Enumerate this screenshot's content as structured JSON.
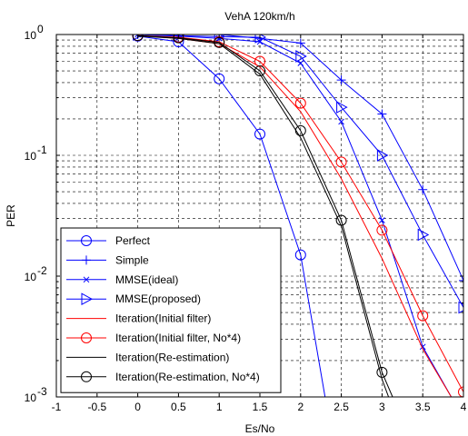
{
  "chart_data": {
    "type": "line",
    "title": "VehA 120km/h",
    "xlabel": "Es/No",
    "ylabel": "PER",
    "xlim": [
      -1,
      4
    ],
    "ylim": [
      0.001,
      1
    ],
    "yscale": "log",
    "grid": true,
    "grid_style": "dashed",
    "legend_position": "lower-left",
    "x_ticks": [
      "-1",
      "-0.5",
      "0",
      "0.5",
      "1",
      "1.5",
      "2",
      "2.5",
      "3",
      "3.5",
      "4"
    ],
    "y_ticks": [
      {
        "base": "10",
        "exp": "0"
      },
      {
        "base": "10",
        "exp": "-1"
      },
      {
        "base": "10",
        "exp": "-2"
      },
      {
        "base": "10",
        "exp": "-3"
      }
    ],
    "series": [
      {
        "name": "Perfect",
        "color": "#0000ff",
        "marker": "circle",
        "x": [
          0,
          0.5,
          1,
          1.5,
          2,
          2.3
        ],
        "y": [
          0.97,
          0.87,
          0.43,
          0.15,
          0.015,
          0.001
        ]
      },
      {
        "name": "Simple",
        "color": "#0000ff",
        "marker": "plus",
        "x": [
          0,
          0.5,
          1,
          1.5,
          2,
          2.5,
          3,
          3.5,
          4
        ],
        "y": [
          1.0,
          1.0,
          1.0,
          0.93,
          0.85,
          0.42,
          0.22,
          0.052,
          0.0092
        ]
      },
      {
        "name": "MMSE(ideal)",
        "color": "#0000ff",
        "marker": "x",
        "x": [
          0,
          0.5,
          1,
          1.5,
          2,
          2.5,
          3,
          3.5,
          3.85
        ],
        "y": [
          1.0,
          0.97,
          0.93,
          0.87,
          0.58,
          0.19,
          0.029,
          0.0026,
          0.001
        ]
      },
      {
        "name": "MMSE(proposed)",
        "color": "#0000ff",
        "marker": "triangle-right",
        "x": [
          0,
          0.5,
          1,
          1.5,
          2,
          2.5,
          3,
          3.5,
          4
        ],
        "y": [
          1.0,
          0.98,
          0.96,
          0.95,
          0.66,
          0.25,
          0.1,
          0.022,
          0.0055
        ]
      },
      {
        "name": "Iteration(Initial filter)",
        "color": "#ff0000",
        "marker": "none",
        "x": [
          0,
          0.5,
          1,
          1.5,
          2,
          2.5,
          3,
          3.5,
          3.85
        ],
        "y": [
          0.98,
          0.93,
          0.84,
          0.54,
          0.23,
          0.064,
          0.014,
          0.0025,
          0.001
        ]
      },
      {
        "name": "Iteration(Initial filter, No*4)",
        "color": "#ff0000",
        "marker": "circle",
        "x": [
          0,
          0.5,
          1,
          1.5,
          2,
          2.5,
          3,
          3.5,
          4
        ],
        "y": [
          0.98,
          0.95,
          0.87,
          0.6,
          0.27,
          0.088,
          0.024,
          0.0047,
          0.0011
        ]
      },
      {
        "name": "Iteration(Re-estimation)",
        "color": "#000000",
        "marker": "none",
        "x": [
          0,
          0.5,
          1,
          1.5,
          2,
          2.5,
          3,
          3.08
        ],
        "y": [
          0.97,
          0.93,
          0.84,
          0.47,
          0.14,
          0.026,
          0.0014,
          0.001
        ]
      },
      {
        "name": "Iteration(Re-estimation, No*4)",
        "color": "#000000",
        "marker": "circle",
        "x": [
          0,
          0.5,
          1,
          1.5,
          2,
          2.5,
          3,
          3.13
        ],
        "y": [
          0.98,
          0.94,
          0.86,
          0.5,
          0.16,
          0.029,
          0.0016,
          0.001
        ]
      }
    ]
  }
}
